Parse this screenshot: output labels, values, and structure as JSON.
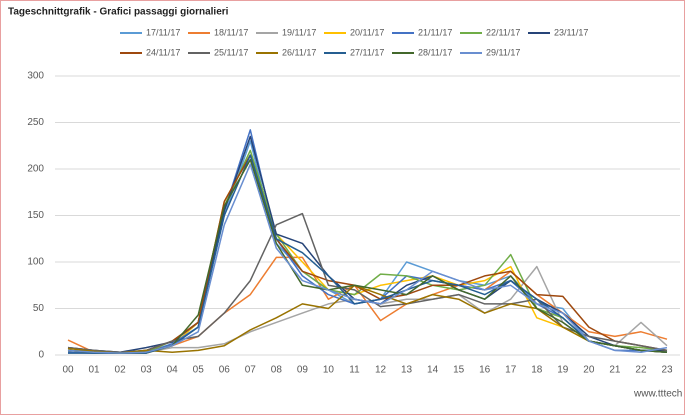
{
  "chart_data": {
    "type": "line",
    "title": "Tageschnittgrafik - Grafici passaggi giornalieri",
    "watermark": "www.tttech",
    "categories": [
      "00",
      "01",
      "02",
      "03",
      "04",
      "05",
      "06",
      "07",
      "08",
      "09",
      "10",
      "11",
      "12",
      "13",
      "14",
      "15",
      "16",
      "17",
      "18",
      "19",
      "20",
      "21",
      "22",
      "23"
    ],
    "ylim": [
      0,
      300
    ],
    "yticks": [
      0,
      50,
      100,
      150,
      200,
      250,
      300
    ],
    "grid": true,
    "series": [
      {
        "name": "17/11/17",
        "color": "#5b9bd5",
        "values": [
          5,
          3,
          2,
          3,
          12,
          30,
          150,
          230,
          120,
          90,
          70,
          55,
          60,
          100,
          90,
          80,
          75,
          85,
          55,
          50,
          15,
          10,
          5,
          4
        ]
      },
      {
        "name": "18/11/17",
        "color": "#ed7d31",
        "values": [
          16,
          3,
          2,
          5,
          10,
          20,
          45,
          65,
          105,
          105,
          60,
          75,
          37,
          55,
          65,
          75,
          70,
          90,
          65,
          45,
          25,
          20,
          25,
          17
        ]
      },
      {
        "name": "19/11/17",
        "color": "#a5a5a5",
        "values": [
          8,
          5,
          3,
          3,
          8,
          8,
          12,
          25,
          35,
          45,
          55,
          60,
          55,
          60,
          60,
          65,
          45,
          60,
          95,
          35,
          15,
          10,
          35,
          10
        ]
      },
      {
        "name": "20/11/17",
        "color": "#ffc000",
        "values": [
          5,
          3,
          2,
          2,
          10,
          35,
          165,
          215,
          130,
          100,
          70,
          65,
          75,
          80,
          85,
          75,
          80,
          95,
          40,
          30,
          15,
          10,
          5,
          3
        ]
      },
      {
        "name": "21/11/17",
        "color": "#4472c4",
        "values": [
          3,
          2,
          2,
          2,
          12,
          30,
          155,
          242,
          125,
          85,
          65,
          55,
          60,
          85,
          80,
          75,
          70,
          80,
          55,
          40,
          15,
          5,
          5,
          3
        ]
      },
      {
        "name": "22/11/17",
        "color": "#70ad47",
        "values": [
          5,
          3,
          2,
          3,
          15,
          35,
          160,
          220,
          130,
          90,
          70,
          65,
          87,
          85,
          75,
          70,
          75,
          108,
          50,
          40,
          15,
          10,
          8,
          5
        ]
      },
      {
        "name": "23/11/17",
        "color": "#264478",
        "values": [
          8,
          5,
          3,
          8,
          14,
          35,
          155,
          235,
          130,
          120,
          85,
          60,
          55,
          75,
          85,
          70,
          60,
          80,
          60,
          45,
          20,
          10,
          5,
          5
        ]
      },
      {
        "name": "24/11/17",
        "color": "#9e480e",
        "values": [
          5,
          3,
          2,
          5,
          15,
          35,
          165,
          215,
          125,
          90,
          80,
          75,
          60,
          65,
          75,
          75,
          85,
          90,
          65,
          63,
          30,
          15,
          10,
          5
        ]
      },
      {
        "name": "25/11/17",
        "color": "#636363",
        "values": [
          8,
          5,
          3,
          5,
          15,
          20,
          45,
          80,
          140,
          152,
          75,
          70,
          52,
          55,
          60,
          65,
          55,
          55,
          60,
          30,
          20,
          15,
          10,
          5
        ]
      },
      {
        "name": "26/11/17",
        "color": "#997300",
        "values": [
          7,
          4,
          2,
          5,
          3,
          5,
          10,
          27,
          40,
          55,
          50,
          75,
          65,
          55,
          65,
          60,
          45,
          55,
          50,
          30,
          15,
          10,
          5,
          3
        ]
      },
      {
        "name": "27/11/17",
        "color": "#255e91",
        "values": [
          2,
          2,
          2,
          2,
          10,
          30,
          150,
          215,
          125,
          110,
          85,
          55,
          60,
          70,
          80,
          75,
          65,
          80,
          60,
          40,
          15,
          10,
          5,
          3
        ]
      },
      {
        "name": "28/11/17",
        "color": "#43682b",
        "values": [
          5,
          3,
          2,
          3,
          10,
          43,
          160,
          210,
          120,
          75,
          70,
          75,
          70,
          65,
          85,
          70,
          60,
          85,
          50,
          35,
          15,
          10,
          5,
          3
        ]
      },
      {
        "name": "29/11/17",
        "color": "#698ed0",
        "values": [
          5,
          3,
          2,
          3,
          10,
          25,
          140,
          205,
          115,
          80,
          70,
          60,
          55,
          70,
          90,
          80,
          70,
          75,
          55,
          45,
          15,
          5,
          3,
          8
        ]
      }
    ]
  }
}
